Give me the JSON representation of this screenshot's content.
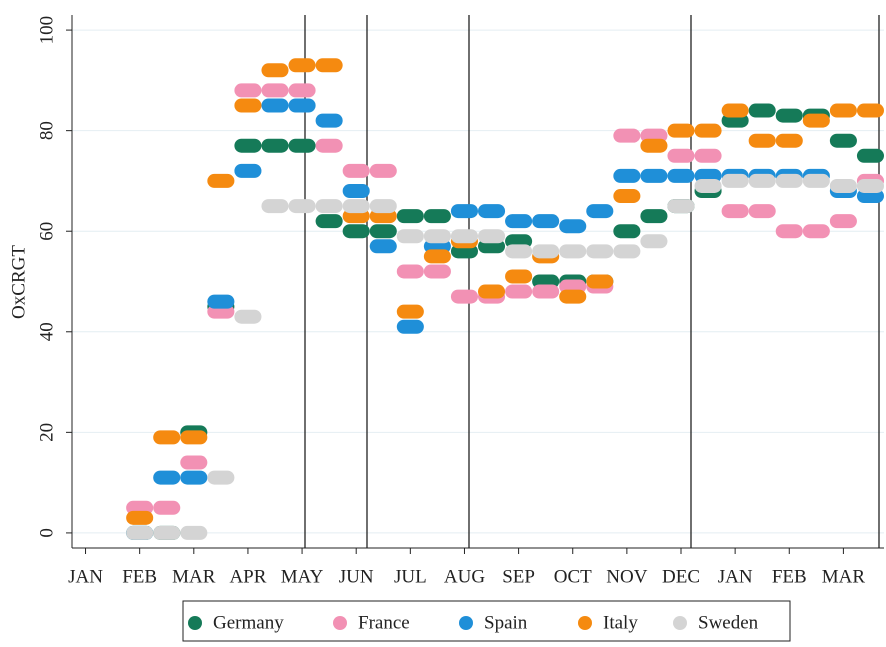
{
  "chart_data": {
    "type": "scatter",
    "ylabel": "OxCRGT",
    "categories": [
      "JAN",
      null,
      "FEB",
      null,
      "MAR",
      null,
      "APR",
      null,
      "MAY",
      null,
      "JUN",
      null,
      "JUL",
      null,
      "AUG",
      null,
      "SEP",
      null,
      "OCT",
      null,
      "NOV",
      null,
      "DEC",
      null,
      "JAN",
      null,
      "FEB",
      null,
      "MAR",
      null
    ],
    "series": [
      {
        "name": "Germany",
        "color": "#157a58",
        "values": [
          null,
          null,
          0,
          0,
          20,
          45,
          77,
          77,
          77,
          62,
          60,
          60,
          63,
          63,
          56,
          57,
          58,
          50,
          50,
          50,
          60,
          63,
          65,
          68,
          82,
          84,
          83,
          83,
          78,
          75
        ]
      },
      {
        "name": "France",
        "color": "#f291b4",
        "values": [
          null,
          null,
          5,
          5,
          14,
          44,
          88,
          88,
          88,
          77,
          72,
          72,
          52,
          52,
          47,
          47,
          48,
          48,
          49,
          49,
          79,
          79,
          75,
          75,
          64,
          64,
          60,
          60,
          62,
          70
        ]
      },
      {
        "name": "Spain",
        "color": "#1f8fd8",
        "values": [
          null,
          null,
          0,
          11,
          11,
          46,
          72,
          85,
          85,
          82,
          68,
          57,
          41,
          57,
          64,
          64,
          62,
          62,
          61,
          64,
          71,
          71,
          71,
          71,
          71,
          71,
          71,
          71,
          68,
          67
        ]
      },
      {
        "name": "Italy",
        "color": "#f58a10",
        "values": [
          null,
          null,
          3,
          19,
          19,
          70,
          85,
          92,
          93,
          93,
          63,
          63,
          44,
          55,
          58,
          48,
          51,
          55,
          47,
          50,
          67,
          77,
          80,
          80,
          84,
          78,
          78,
          82,
          84,
          84
        ]
      },
      {
        "name": "Sweden",
        "color": "#d4d4d4",
        "values": [
          null,
          null,
          0,
          0,
          0,
          11,
          43,
          65,
          65,
          65,
          65,
          65,
          59,
          59,
          59,
          59,
          56,
          56,
          56,
          56,
          56,
          58,
          65,
          69,
          70,
          70,
          70,
          70,
          69,
          69
        ]
      }
    ],
    "ylim": [
      -3,
      103
    ],
    "yticks": [
      0,
      20,
      40,
      60,
      80,
      100
    ],
    "grid": true,
    "legend": "bottom"
  }
}
